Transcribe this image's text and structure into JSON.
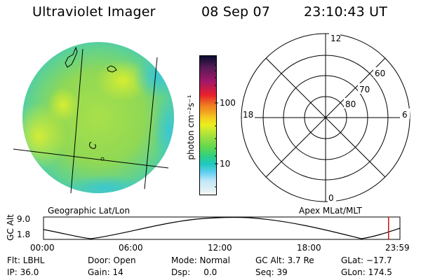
{
  "header": {
    "title": "Ultraviolet Imager",
    "date": "08 Sep 07",
    "time": "23:10:43 UT"
  },
  "colorbar": {
    "unit_label": "photon cm⁻²s⁻¹",
    "tick_100": "100",
    "tick_10": "10"
  },
  "polar_plot": {
    "mlt_top": "12",
    "mlt_left": "18",
    "mlt_right": "6",
    "mlt_bottom": "0",
    "lat_60": "60",
    "lat_70": "70",
    "lat_80": "80"
  },
  "timeline": {
    "left_caption": "Geographic Lat/Lon",
    "right_caption": "Apex MLat/MLT",
    "y_axis_label": "GC Alt",
    "y_max": "9.0",
    "y_min": "1.8",
    "x_ticks": [
      "00:00",
      "06:00",
      "12:00",
      "18:00",
      "23:59"
    ],
    "current_time_fraction": 0.968
  },
  "info": {
    "filter": "Flt: LBHL",
    "ip": "IP: 36.0",
    "door": "Door: Open",
    "gain": "Gain: 14",
    "mode": "Mode: Normal",
    "dsp": "Dsp:     0.0",
    "gc_alt": "GC Alt: 3.7 Re",
    "seq": "Seq: 39",
    "glat": "GLat: −17.7",
    "glon": "GLon: 174.5"
  },
  "colors": {
    "current_marker": "#d01010"
  }
}
